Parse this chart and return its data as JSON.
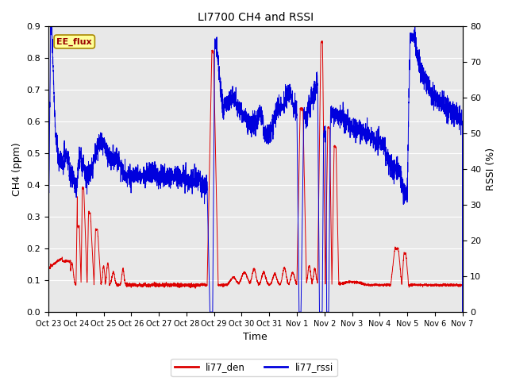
{
  "title": "LI7700 CH4 and RSSI",
  "xlabel": "Time",
  "ylabel_left": "CH4 (ppm)",
  "ylabel_right": "RSSI (%)",
  "ylim_left": [
    0.0,
    0.9
  ],
  "ylim_right": [
    0,
    80
  ],
  "yticks_left": [
    0.0,
    0.1,
    0.2,
    0.3,
    0.4,
    0.5,
    0.6,
    0.7,
    0.8,
    0.9
  ],
  "yticks_right": [
    0,
    10,
    20,
    30,
    40,
    50,
    60,
    70,
    80
  ],
  "color_ch4": "#dd0000",
  "color_rssi": "#0000dd",
  "legend_labels": [
    "li77_den",
    "li77_rssi"
  ],
  "annotation_text": "EE_flux",
  "bg_color": "#e8e8e8",
  "fig_bg": "#ffffff",
  "xtick_labels": [
    "Oct 23",
    "Oct 24",
    "Oct 25",
    "Oct 26",
    "Oct 27",
    "Oct 28",
    "Oct 29",
    "Oct 30",
    "Oct 31",
    "Nov 1",
    "Nov 2",
    "Nov 3",
    "Nov 4",
    "Nov 5",
    "Nov 6",
    "Nov 7"
  ]
}
